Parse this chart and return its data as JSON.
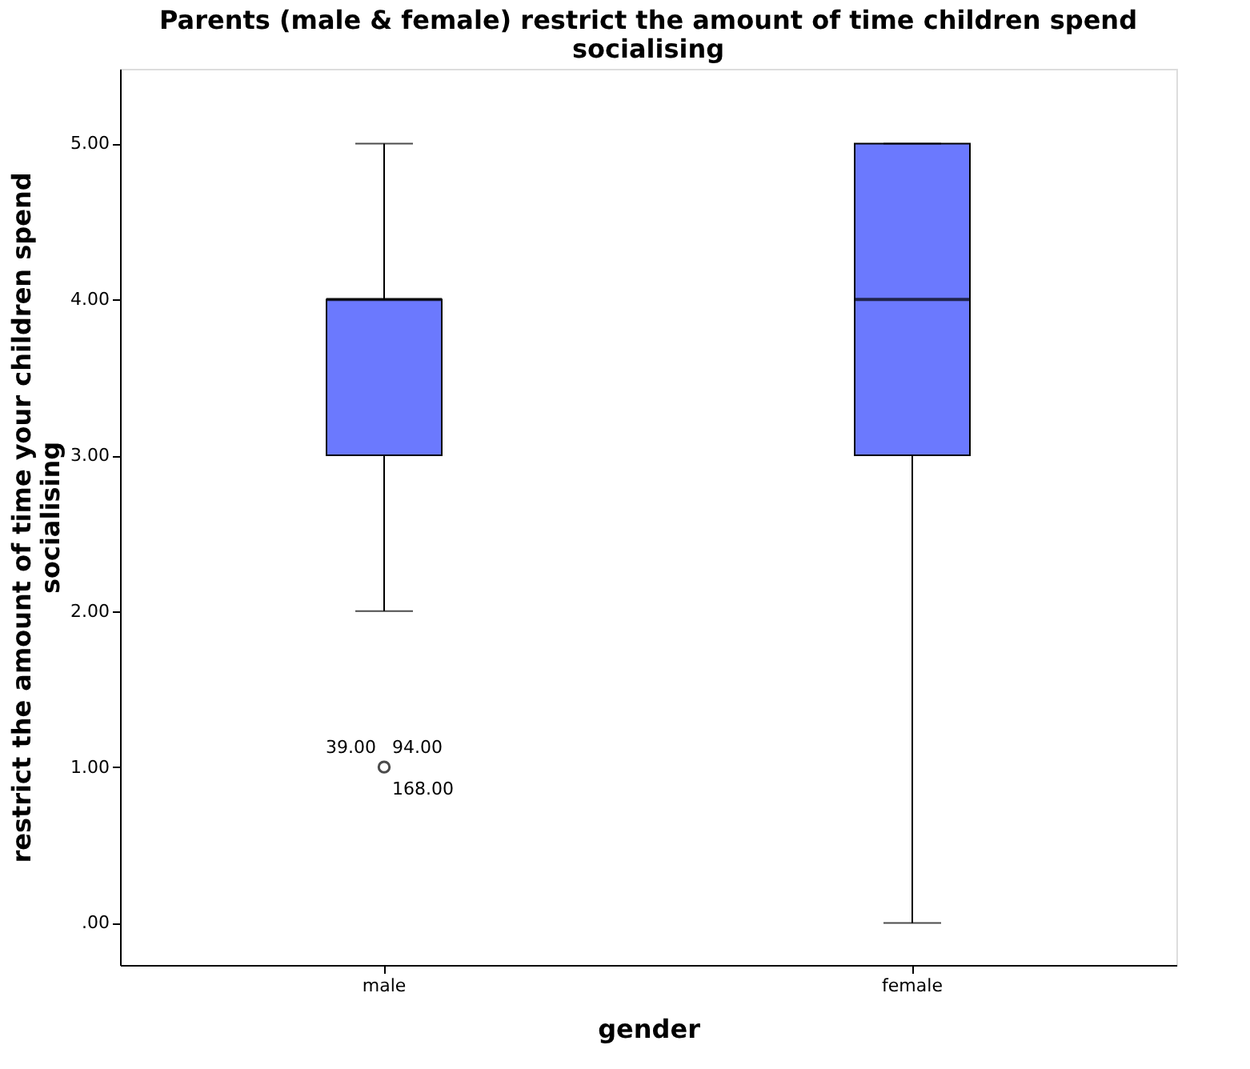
{
  "chart_data": {
    "type": "box",
    "title": "Parents (male & female) restrict the amount of time children spend socialising",
    "xlabel": "gender",
    "ylabel": "restrict the amount of time your children spend socialising",
    "categories": [
      "male",
      "female"
    ],
    "series": [
      {
        "color": "#6b79fe",
        "boxes": [
          {
            "low": 2,
            "q1": 3,
            "median": 4,
            "q3": 4,
            "high": 5,
            "outliers": [
              1
            ]
          },
          {
            "low": 0,
            "q1": 3,
            "median": 4,
            "q3": 5,
            "high": 5
          }
        ]
      }
    ],
    "ylim": [
      -0.27,
      5.48
    ],
    "yticks": [
      {
        "value": 0,
        "label": ".00"
      },
      {
        "value": 1,
        "label": "1.00"
      },
      {
        "value": 2,
        "label": "2.00"
      },
      {
        "value": 3,
        "label": "3.00"
      },
      {
        "value": 4,
        "label": "4.00"
      },
      {
        "value": 5,
        "label": "5.00"
      }
    ],
    "annotations": [
      "39.00",
      "94.00",
      "168.00"
    ],
    "grid": false
  }
}
